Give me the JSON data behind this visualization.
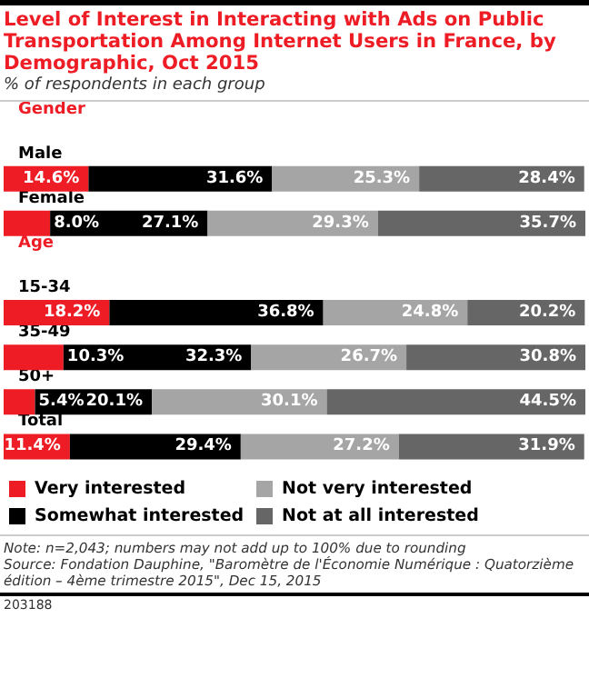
{
  "chart_data": {
    "type": "bar",
    "orientation": "horizontal",
    "stacked": true,
    "legend": "bottom",
    "title": "Level of Interest in Interacting with Ads on Public Transportation Among Internet Users in France, by Demographic, Oct 2015",
    "subtitle": "% of respondents in each group",
    "categories": [
      "Gender",
      "Male",
      "Female",
      "Age",
      "15-34",
      "35-49",
      "50+",
      "Total"
    ],
    "series": [
      {
        "name": "Very interested",
        "color": "#ee1c25",
        "values": [
          null,
          14.6,
          8.0,
          null,
          18.2,
          10.3,
          5.4,
          11.4
        ],
        "value_labels": [
          null,
          "14.6%",
          "8.0%",
          null,
          "18.2%",
          "10.3%",
          "5.4%",
          "11.4%"
        ]
      },
      {
        "name": "Somewhat interested",
        "color": "#000000",
        "values": [
          null,
          31.6,
          27.1,
          null,
          36.8,
          32.3,
          20.1,
          29.4
        ],
        "value_labels": [
          null,
          "31.6%",
          "27.1%",
          null,
          "36.8%",
          "32.3%",
          "20.1%",
          "29.4%"
        ]
      },
      {
        "name": "Not very interested",
        "color": "#a5a5a5",
        "values": [
          null,
          25.3,
          29.3,
          null,
          24.8,
          26.7,
          30.1,
          27.2
        ],
        "value_labels": [
          null,
          "25.3%",
          "29.3%",
          null,
          "24.8%",
          "26.7%",
          "30.1%",
          "27.2%"
        ]
      },
      {
        "name": "Not at all interested",
        "color": "#666666",
        "values": [
          null,
          28.4,
          35.7,
          null,
          20.2,
          30.8,
          44.5,
          31.9
        ],
        "value_labels": [
          null,
          "28.4%",
          "35.7%",
          null,
          "20.2%",
          "30.8%",
          "44.5%",
          "31.9%"
        ]
      }
    ],
    "annotations": [
      "Note: n=2,043; numbers may not add up to 100% due to rounding",
      "Source: Fondation Dauphine, \"Baromètre de l'Économie Numérique : Quatorzième édition – 4ème trimestre 2015\", Dec 15, 2015",
      "203188"
    ]
  }
}
